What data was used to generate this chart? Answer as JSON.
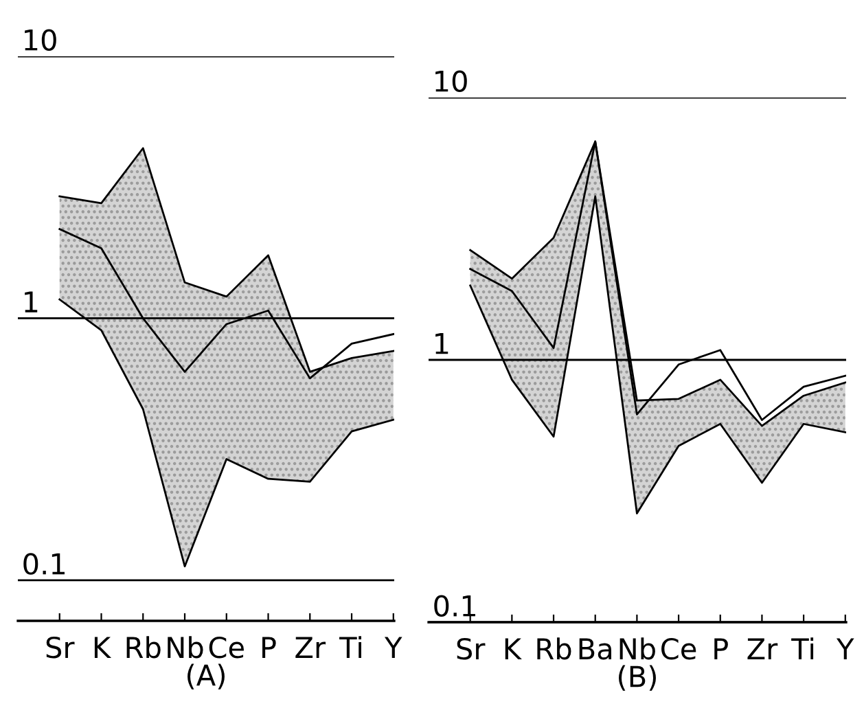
{
  "chart_data": [
    {
      "type": "line",
      "xlabel": "(A)",
      "categories": [
        "Sr",
        "K",
        "Rb",
        "Nb",
        "Ce",
        "P",
        "Zr",
        "Ti",
        "Y"
      ],
      "ylim": [
        0.07,
        10
      ],
      "yticks": [
        0.1,
        1,
        10
      ],
      "log": true,
      "grid": "y",
      "legend": false,
      "marker": "none",
      "line_style": "solid",
      "series": [
        {
          "color": "#000000",
          "values": [
            2.92,
            2.75,
            4.46,
            1.37,
            1.21,
            1.74,
            0.625,
            0.705,
            0.75
          ]
        },
        {
          "color": "#000000",
          "values": [
            1.18,
            0.9,
            0.45,
            0.113,
            0.29,
            0.244,
            0.238,
            0.37,
            0.41
          ]
        },
        {
          "color": "#000000",
          "values": [
            2.19,
            1.85,
            1.0,
            0.625,
            0.95,
            1.07,
            0.59,
            0.8,
            0.87
          ],
          "upper": [
            2.92,
            2.75,
            4.46,
            1.37,
            1.21,
            1.74,
            0.625,
            0.705,
            0.75
          ],
          "lower": [
            1.18,
            0.9,
            0.45,
            0.113,
            0.29,
            0.244,
            0.238,
            0.37,
            0.41
          ]
        }
      ]
    },
    {
      "type": "line",
      "xlabel": "(B)",
      "categories": [
        "Sr",
        "K",
        "Rb",
        "Ba",
        "Nb",
        "Ce",
        "P",
        "Zr",
        "Ti",
        "Y"
      ],
      "ylim": [
        0.1,
        10
      ],
      "yticks": [
        0.1,
        1,
        10
      ],
      "log": true,
      "grid": "y",
      "legend": false,
      "marker": "none",
      "line_style": "solid",
      "series": [
        {
          "color": "#000000",
          "values": [
            2.62,
            2.04,
            2.92,
            6.8,
            0.7,
            0.71,
            0.84,
            0.56,
            0.73,
            0.82
          ]
        },
        {
          "color": "#000000",
          "values": [
            1.92,
            0.84,
            0.51,
            4.2,
            0.26,
            0.47,
            0.57,
            0.34,
            0.57,
            0.53
          ]
        },
        {
          "color": "#000000",
          "values": [
            2.22,
            1.83,
            1.11,
            6.8,
            0.62,
            0.96,
            1.09,
            0.59,
            0.79,
            0.87
          ],
          "upper": [
            2.62,
            2.04,
            2.92,
            6.8,
            0.7,
            0.71,
            0.84,
            0.56,
            0.73,
            0.82
          ],
          "lower": [
            1.92,
            0.84,
            0.51,
            4.2,
            0.26,
            0.47,
            0.57,
            0.34,
            0.57,
            0.53
          ]
        }
      ]
    }
  ]
}
